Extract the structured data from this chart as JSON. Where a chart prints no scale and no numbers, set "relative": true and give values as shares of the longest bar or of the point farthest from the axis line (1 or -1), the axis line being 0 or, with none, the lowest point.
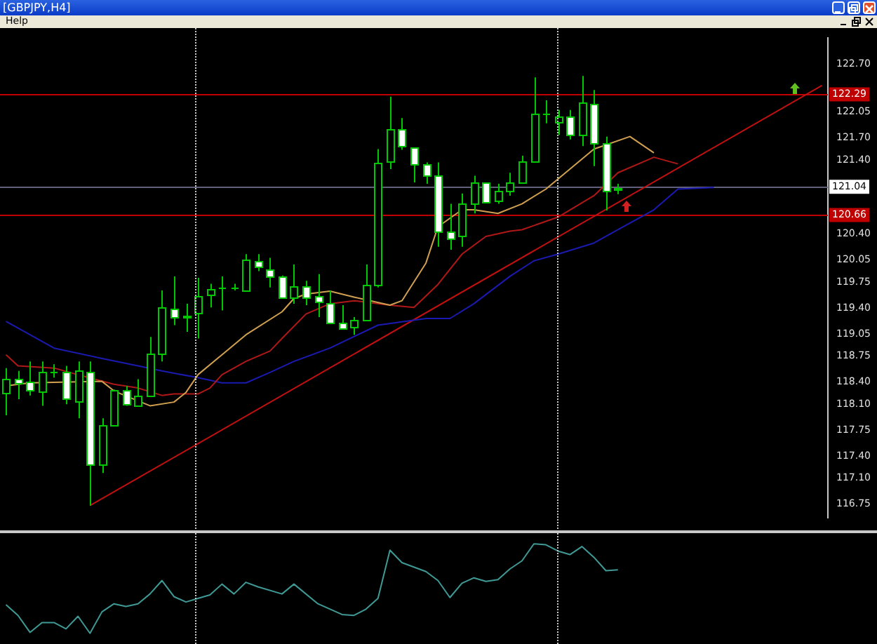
{
  "chart_data": [
    {
      "type": "candlestick",
      "title": "[GBPJPY,H4]",
      "annotations": [
        "Help"
      ],
      "tick_labels": "y",
      "grid": false,
      "legend": false,
      "categories": [
        null,
        null,
        null,
        null,
        null,
        null,
        null,
        null,
        null,
        null,
        null,
        null,
        null,
        null,
        null,
        null,
        null,
        null,
        null,
        null,
        null,
        null,
        null,
        null,
        null,
        null,
        null,
        null,
        null,
        null,
        null,
        null,
        null,
        null,
        null,
        null,
        null,
        null,
        null,
        null,
        null,
        null,
        null,
        null,
        null,
        null,
        null,
        null,
        null,
        null,
        null,
        null,
        null,
        null,
        null,
        null,
        null,
        null,
        null,
        null,
        null,
        null,
        null,
        null,
        null,
        null,
        null,
        null,
        null
      ],
      "ohlc": [
        [
          118.26,
          118.59,
          117.95,
          118.44
        ],
        [
          118.44,
          118.55,
          118.17,
          118.39
        ],
        [
          118.41,
          118.68,
          118.22,
          118.3
        ],
        [
          118.28,
          118.68,
          118.08,
          118.53
        ],
        [
          118.53,
          118.64,
          118.46,
          118.54
        ],
        [
          118.53,
          118.62,
          118.1,
          118.17
        ],
        [
          118.15,
          118.68,
          117.91,
          118.55
        ],
        [
          118.53,
          118.68,
          116.73,
          117.28
        ],
        [
          117.28,
          117.91,
          117.17,
          117.82
        ],
        [
          117.82,
          118.3,
          117.82,
          118.3
        ],
        [
          118.3,
          118.35,
          118.08,
          118.1
        ],
        [
          118.08,
          118.44,
          118.08,
          118.21
        ],
        [
          118.21,
          119.01,
          118.21,
          118.79
        ],
        [
          118.79,
          119.64,
          118.68,
          119.42
        ],
        [
          119.39,
          119.83,
          119.17,
          119.28
        ],
        [
          119.28,
          119.46,
          119.08,
          119.29
        ],
        [
          119.33,
          119.81,
          118.99,
          119.57
        ],
        [
          119.59,
          119.73,
          119.41,
          119.66
        ],
        [
          119.68,
          119.83,
          119.37,
          119.68
        ],
        [
          119.68,
          119.73,
          119.64,
          119.68
        ],
        [
          119.64,
          120.13,
          119.64,
          120.06
        ],
        [
          120.04,
          120.13,
          119.9,
          119.97
        ],
        [
          119.92,
          120.08,
          119.68,
          119.83
        ],
        [
          119.83,
          119.84,
          119.53,
          119.55
        ],
        [
          119.55,
          119.99,
          119.46,
          119.7
        ],
        [
          119.7,
          119.77,
          119.44,
          119.55
        ],
        [
          119.57,
          119.86,
          119.28,
          119.48
        ],
        [
          119.46,
          119.64,
          119.19,
          119.21
        ],
        [
          119.21,
          119.44,
          119.13,
          119.13
        ],
        [
          119.15,
          119.28,
          119.04,
          119.24
        ],
        [
          119.24,
          119.99,
          119.24,
          119.72
        ],
        [
          119.72,
          121.55,
          119.68,
          121.37
        ],
        [
          121.39,
          122.26,
          121.28,
          121.83
        ],
        [
          121.83,
          121.97,
          121.54,
          121.59
        ],
        [
          121.57,
          121.57,
          121.1,
          121.35
        ],
        [
          121.35,
          121.37,
          121.08,
          121.19
        ],
        [
          121.19,
          121.37,
          120.23,
          120.44
        ],
        [
          120.43,
          120.81,
          120.19,
          120.35
        ],
        [
          120.37,
          120.95,
          120.23,
          120.81
        ],
        [
          120.81,
          121.19,
          120.68,
          121.1
        ],
        [
          121.1,
          121.1,
          120.84,
          120.84
        ],
        [
          120.86,
          121.08,
          120.81,
          120.99
        ],
        [
          120.99,
          121.23,
          120.92,
          121.1
        ],
        [
          121.1,
          121.46,
          121.08,
          121.39
        ],
        [
          121.39,
          122.52,
          121.39,
          122.03
        ],
        [
          122.03,
          122.21,
          121.9,
          122.03
        ],
        [
          121.92,
          122.08,
          121.74,
          121.99
        ],
        [
          121.99,
          122.08,
          121.68,
          121.75
        ],
        [
          121.75,
          122.54,
          121.59,
          122.19
        ],
        [
          122.17,
          122.35,
          121.32,
          121.63
        ],
        [
          121.64,
          121.72,
          120.72,
          120.99
        ],
        [
          121.01,
          121.08,
          120.94,
          121.03
        ],
        null,
        null,
        null,
        null,
        null,
        null,
        null,
        null,
        null,
        null,
        null,
        null,
        null,
        null,
        null,
        null,
        null
      ],
      "series": [
        {
          "type": "line",
          "color": "#d0a050",
          "values": [
            118.35,
            null,
            118.39,
            null,
            null,
            null,
            null,
            null,
            118.41,
            118.28,
            null,
            null,
            118.08,
            null,
            118.13,
            118.26,
            118.5,
            null,
            118.77,
            null,
            119.04,
            null,
            null,
            119.35,
            119.53,
            119.59,
            null,
            119.63,
            null,
            119.55,
            null,
            null,
            119.44,
            119.5,
            null,
            120.01,
            120.5,
            null,
            120.73,
            120.73,
            null,
            120.68,
            null,
            120.81,
            null,
            121.01,
            null,
            121.28,
            null,
            121.55,
            null,
            null,
            121.72,
            null,
            121.5,
            null,
            null,
            null,
            null,
            null,
            null,
            null,
            null,
            null,
            null,
            null,
            null,
            null,
            null
          ]
        },
        {
          "type": "line",
          "color": "#b01818",
          "values": [
            118.77,
            118.62,
            null,
            null,
            118.59,
            null,
            118.5,
            null,
            null,
            118.37,
            null,
            118.32,
            null,
            118.22,
            118.24,
            null,
            118.24,
            118.32,
            118.5,
            null,
            118.68,
            null,
            118.82,
            118.99,
            null,
            119.32,
            null,
            119.46,
            null,
            119.5,
            null,
            null,
            119.44,
            null,
            119.41,
            null,
            119.72,
            null,
            120.13,
            null,
            120.37,
            null,
            120.44,
            120.46,
            null,
            null,
            120.63,
            null,
            null,
            120.92,
            null,
            121.23,
            null,
            null,
            121.44,
            null,
            121.35,
            null,
            null,
            null,
            null,
            null,
            null,
            null,
            null,
            null,
            null,
            null,
            null
          ]
        },
        {
          "type": "line",
          "color": "#1a1ab0",
          "values": [
            119.22,
            null,
            null,
            null,
            118.86,
            null,
            null,
            null,
            118.72,
            null,
            null,
            118.62,
            null,
            118.55,
            null,
            null,
            118.46,
            null,
            118.39,
            null,
            118.39,
            null,
            118.53,
            null,
            118.68,
            null,
            null,
            118.86,
            null,
            null,
            null,
            119.17,
            null,
            null,
            null,
            119.26,
            null,
            119.26,
            null,
            119.46,
            null,
            null,
            119.83,
            null,
            120.04,
            null,
            120.13,
            null,
            null,
            120.28,
            null,
            120.46,
            null,
            null,
            120.73,
            null,
            121.01,
            null,
            null,
            121.03,
            null,
            null,
            null,
            null,
            null,
            null,
            null,
            null,
            null
          ]
        },
        {
          "type": "line",
          "color": "#c01010",
          "values": [
            null,
            null,
            null,
            null,
            null,
            null,
            null,
            116.73,
            null,
            null,
            null,
            null,
            null,
            null,
            null,
            null,
            null,
            null,
            null,
            null,
            null,
            null,
            null,
            null,
            null,
            null,
            null,
            null,
            null,
            null,
            null,
            null,
            null,
            null,
            null,
            null,
            null,
            null,
            null,
            null,
            null,
            null,
            null,
            null,
            null,
            null,
            null,
            null,
            null,
            null,
            null,
            null,
            null,
            null,
            null,
            null,
            null,
            null,
            null,
            null,
            null,
            null,
            null,
            null,
            null,
            null,
            null,
            null,
            122.41
          ]
        }
      ],
      "ylim": [
        116.57,
        123.05
      ],
      "yticks": [
        {
          "value": 116.75,
          "label": "116.75"
        },
        {
          "value": 117.1,
          "label": "117.10"
        },
        {
          "value": 117.4,
          "label": "117.40"
        },
        {
          "value": 117.75,
          "label": "117.75"
        },
        {
          "value": 118.1,
          "label": "118.10"
        },
        {
          "value": 118.4,
          "label": "118.40"
        },
        {
          "value": 118.75,
          "label": "118.75"
        },
        {
          "value": 119.05,
          "label": "119.05"
        },
        {
          "value": 119.4,
          "label": "119.40"
        },
        {
          "value": 119.75,
          "label": "119.75"
        },
        {
          "value": 120.05,
          "label": "120.05"
        },
        {
          "value": 120.4,
          "label": "120.40"
        },
        {
          "value": 121.4,
          "label": "121.40"
        },
        {
          "value": 121.7,
          "label": "121.70"
        },
        {
          "value": 122.05,
          "label": "122.05"
        },
        {
          "value": 122.7,
          "label": "122.70"
        }
      ],
      "ref_lines": [
        {
          "axis": "y",
          "value": 122.29,
          "label": "122.29",
          "color": "#c00000"
        },
        {
          "axis": "y",
          "value": 120.66,
          "label": "120.66",
          "color": "#c00000"
        },
        {
          "axis": "y",
          "value": 121.04,
          "label": "121.04",
          "color": "#60607a"
        }
      ]
    },
    {
      "type": "line",
      "relative": true,
      "tick_labels": false,
      "grid": false,
      "legend": false,
      "color": "#3f9a96",
      "categories": [
        null,
        null,
        null,
        null,
        null,
        null,
        null,
        null,
        null,
        null,
        null,
        null,
        null,
        null,
        null,
        null,
        null,
        null,
        null,
        null,
        null,
        null,
        null,
        null,
        null,
        null,
        null,
        null,
        null,
        null,
        null,
        null,
        null,
        null,
        null,
        null,
        null,
        null,
        null,
        null,
        null,
        null,
        null,
        null,
        null,
        null,
        null,
        null,
        null,
        null,
        null,
        null,
        null,
        null,
        null,
        null,
        null,
        null,
        null,
        null,
        null,
        null,
        null,
        null,
        null,
        null,
        null,
        null,
        null
      ],
      "values": [
        0.32,
        0.2,
        0.01,
        0.12,
        0.12,
        0.05,
        0.19,
        0,
        0.24,
        0.33,
        0.3,
        0.33,
        0.44,
        0.59,
        0.41,
        0.35,
        0.39,
        0.43,
        0.55,
        0.44,
        0.57,
        0.52,
        null,
        0.44,
        0.55,
        null,
        0.33,
        null,
        0.21,
        0.2,
        0.27,
        0.39,
        0.93,
        0.79,
        null,
        0.69,
        0.59,
        0.4,
        0.56,
        0.62,
        0.58,
        0.6,
        0.72,
        0.81,
        1,
        0.99,
        0.92,
        0.88,
        0.97,
        0.85,
        0.7,
        0.71,
        null,
        null,
        null,
        null,
        null,
        null,
        null,
        null,
        null,
        null,
        null,
        null,
        null,
        null,
        null,
        null,
        null
      ]
    }
  ]
}
